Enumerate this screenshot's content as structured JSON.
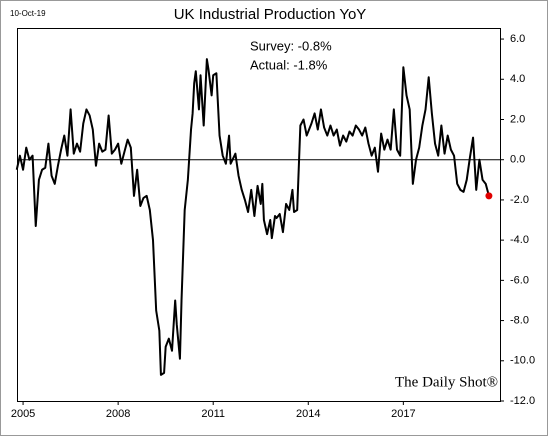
{
  "chart_data": {
    "type": "line",
    "date": "10-Oct-19",
    "title": "UK Industrial Production YoY",
    "annotations": [
      "Survey: -0.8%",
      "Actual:  -1.8%"
    ],
    "watermark": "The Daily Shot®",
    "x": [
      2004.8,
      2004.9,
      2005.0,
      2005.1,
      2005.2,
      2005.3,
      2005.4,
      2005.5,
      2005.6,
      2005.7,
      2005.8,
      2005.9,
      2006.0,
      2006.1,
      2006.2,
      2006.3,
      2006.4,
      2006.5,
      2006.6,
      2006.7,
      2006.8,
      2006.9,
      2007.0,
      2007.1,
      2007.2,
      2007.3,
      2007.4,
      2007.5,
      2007.6,
      2007.7,
      2007.8,
      2007.9,
      2008.0,
      2008.1,
      2008.2,
      2008.3,
      2008.4,
      2008.5,
      2008.6,
      2008.7,
      2008.8,
      2008.9,
      2009.0,
      2009.1,
      2009.2,
      2009.3,
      2009.35,
      2009.45,
      2009.5,
      2009.6,
      2009.7,
      2009.8,
      2009.85,
      2009.95,
      2010.0,
      2010.1,
      2010.2,
      2010.3,
      2010.35,
      2010.4,
      2010.45,
      2010.55,
      2010.6,
      2010.7,
      2010.8,
      2010.85,
      2010.95,
      2011.0,
      2011.1,
      2011.2,
      2011.3,
      2011.4,
      2011.5,
      2011.55,
      2011.7,
      2011.8,
      2011.9,
      2012.0,
      2012.1,
      2012.2,
      2012.3,
      2012.4,
      2012.5,
      2012.55,
      2012.6,
      2012.7,
      2012.8,
      2012.85,
      2012.95,
      2013.0,
      2013.1,
      2013.2,
      2013.3,
      2013.4,
      2013.5,
      2013.55,
      2013.65,
      2013.75,
      2013.85,
      2013.95,
      2014.1,
      2014.2,
      2014.3,
      2014.4,
      2014.5,
      2014.6,
      2014.7,
      2014.8,
      2014.9,
      2015.0,
      2015.1,
      2015.2,
      2015.3,
      2015.4,
      2015.5,
      2015.6,
      2015.7,
      2015.8,
      2015.9,
      2016.0,
      2016.1,
      2016.2,
      2016.3,
      2016.4,
      2016.5,
      2016.6,
      2016.7,
      2016.8,
      2016.9,
      2017.0,
      2017.1,
      2017.2,
      2017.3,
      2017.4,
      2017.5,
      2017.6,
      2017.7,
      2017.8,
      2017.9,
      2018.0,
      2018.1,
      2018.2,
      2018.3,
      2018.4,
      2018.5,
      2018.6,
      2018.7,
      2018.8,
      2018.9,
      2019.0,
      2019.1,
      2019.2,
      2019.3,
      2019.4,
      2019.5,
      2019.6,
      2019.7
    ],
    "values": [
      -0.5,
      0.2,
      -0.5,
      0.6,
      0.0,
      0.2,
      -3.3,
      -1.0,
      -0.5,
      -0.4,
      0.8,
      -0.8,
      -1.2,
      -0.3,
      0.5,
      1.2,
      0.2,
      2.5,
      0.3,
      0.8,
      0.4,
      1.8,
      2.5,
      2.2,
      1.5,
      -0.3,
      0.8,
      0.4,
      0.5,
      2.2,
      0.3,
      0.5,
      0.8,
      -0.2,
      0.4,
      1.0,
      0.6,
      -1.8,
      -0.5,
      -2.3,
      -1.9,
      -1.8,
      -2.5,
      -4.0,
      -7.5,
      -8.5,
      -10.7,
      -10.6,
      -9.3,
      -8.9,
      -9.5,
      -7.0,
      -8.2,
      -9.9,
      -7.0,
      -2.5,
      -1.0,
      1.5,
      2.3,
      3.8,
      4.4,
      2.5,
      4.2,
      1.7,
      5.0,
      4.5,
      3.2,
      4.2,
      4.3,
      1.2,
      0.2,
      -0.2,
      1.2,
      -0.2,
      0.3,
      -0.8,
      -1.5,
      -2.0,
      -2.6,
      -1.5,
      -2.8,
      -1.3,
      -2.2,
      -1.2,
      -3.0,
      -3.7,
      -3.0,
      -3.9,
      -2.8,
      -2.9,
      -2.7,
      -3.6,
      -2.2,
      -2.5,
      -1.5,
      -2.6,
      -2.5,
      1.7,
      2.0,
      1.2,
      1.8,
      2.3,
      1.5,
      2.5,
      1.6,
      1.2,
      1.7,
      1.2,
      1.5,
      0.7,
      1.2,
      0.9,
      1.4,
      1.2,
      1.7,
      1.5,
      1.2,
      1.6,
      0.8,
      0.2,
      0.6,
      -0.6,
      1.3,
      0.5,
      1.0,
      0.5,
      2.5,
      0.5,
      0.2,
      4.6,
      3.2,
      2.5,
      -1.2,
      0.0,
      0.6,
      1.7,
      2.5,
      4.1,
      2.3,
      0.8,
      0.2,
      1.7,
      0.3,
      1.2,
      0.5,
      0.2,
      -1.2,
      -1.5,
      -1.6,
      -1.0,
      0.1,
      1.1,
      -1.5,
      0.0,
      -1.0,
      -1.2,
      -1.8
    ],
    "color": "#000000",
    "last_point_color": "#e00000",
    "xlim": [
      2004.84,
      2020.05
    ],
    "xticks": [
      2005,
      2008,
      2011,
      2014,
      2017
    ],
    "ylim": [
      -12,
      6.5
    ],
    "yticks": [
      {
        "value": 6,
        "label": "6.0"
      },
      {
        "value": 4,
        "label": "4.0"
      },
      {
        "value": 2,
        "label": "2.0"
      },
      {
        "value": 0,
        "label": "0.0"
      },
      {
        "value": -2,
        "label": "-2.0"
      },
      {
        "value": -4,
        "label": "-4.0"
      },
      {
        "value": -6,
        "label": "-6.0"
      },
      {
        "value": -8,
        "label": "-8.0"
      },
      {
        "value": -10,
        "label": "-10.0"
      },
      {
        "value": -12,
        "label": "-12.0"
      }
    ],
    "zero_line": true
  }
}
